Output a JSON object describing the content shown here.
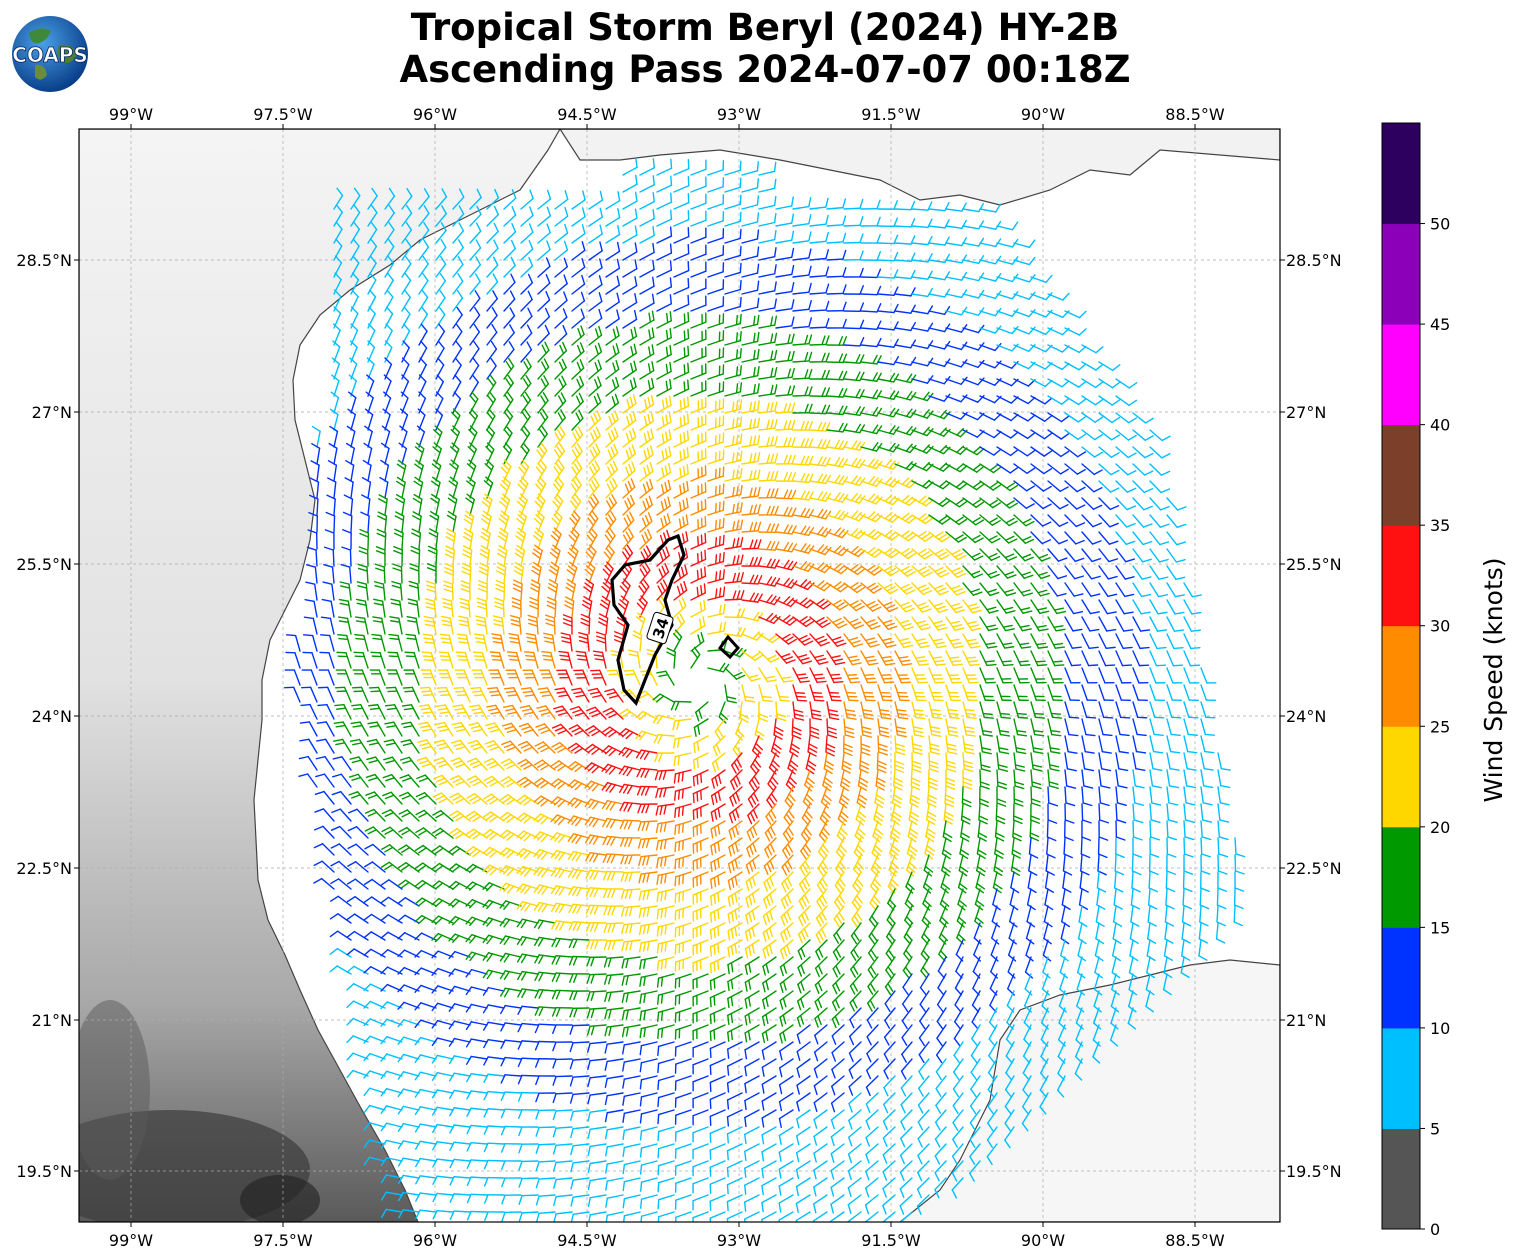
{
  "title_line1": "Tropical Storm Beryl (2024) HY-2B",
  "title_line2": "Ascending Pass 2024-07-07 00:18Z",
  "logo_text": "COAPS",
  "map": {
    "lon_ticks": [
      "99°W",
      "97.5°W",
      "96°W",
      "94.5°W",
      "93°W",
      "91.5°W",
      "90°W",
      "88.5°W"
    ],
    "lat_ticks": [
      "28.5°N",
      "27°N",
      "25.5°N",
      "24°N",
      "22.5°N",
      "21°N",
      "19.5°N"
    ],
    "contour_label": "34",
    "center": {
      "lon": -93.5,
      "lat": 24.2
    }
  },
  "colorbar": {
    "label": "Wind Speed (knots)",
    "ticks": [
      "0",
      "5",
      "10",
      "15",
      "20",
      "25",
      "30",
      "35",
      "40",
      "45",
      "50"
    ],
    "colors": [
      "#555555",
      "#00bfff",
      "#0033ff",
      "#009900",
      "#ffd700",
      "#ff8c00",
      "#ff1111",
      "#7b3f2a",
      "#ff00ff",
      "#8b00b8",
      "#2d0060"
    ]
  }
}
